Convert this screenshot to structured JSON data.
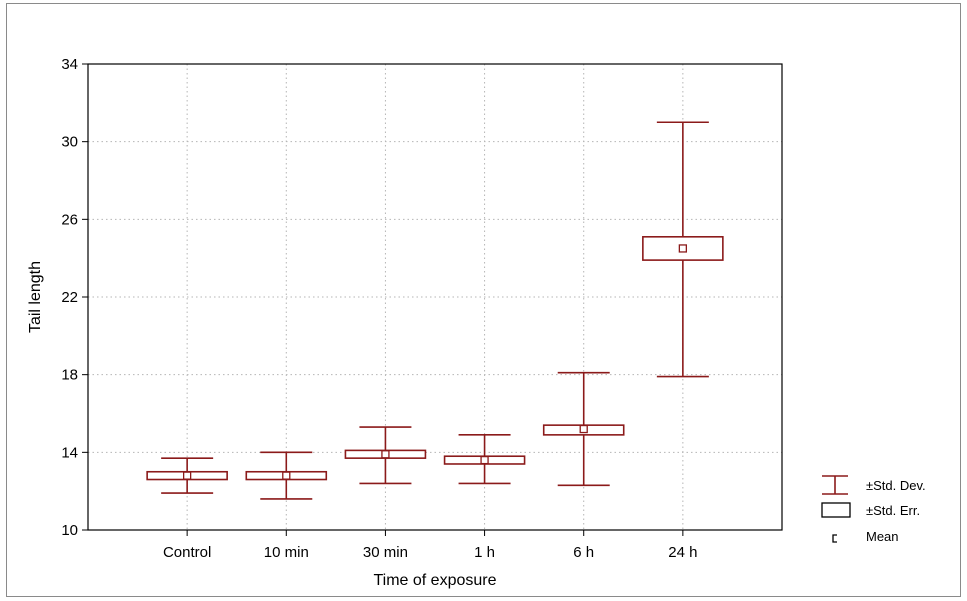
{
  "chart_data": {
    "type": "box",
    "title": "",
    "xlabel": "Time of exposure",
    "ylabel": "Tail length",
    "ylim": [
      10,
      34
    ],
    "yticks": [
      10,
      14,
      18,
      22,
      26,
      30,
      34
    ],
    "grid": true,
    "legend_position": "bottom-right",
    "color": "#8b1a1a",
    "categories": [
      "Control",
      "10 min",
      "30 min",
      "1 h",
      "6 h",
      "24 h"
    ],
    "series": [
      {
        "category": "Control",
        "mean": 12.8,
        "se_low": 12.6,
        "se_high": 13.0,
        "sd_low": 11.9,
        "sd_high": 13.7
      },
      {
        "category": "10 min",
        "mean": 12.8,
        "se_low": 12.6,
        "se_high": 13.0,
        "sd_low": 11.6,
        "sd_high": 14.0
      },
      {
        "category": "30 min",
        "mean": 13.9,
        "se_low": 13.7,
        "se_high": 14.1,
        "sd_low": 12.4,
        "sd_high": 15.3
      },
      {
        "category": "1 h",
        "mean": 13.6,
        "se_low": 13.4,
        "se_high": 13.8,
        "sd_low": 12.4,
        "sd_high": 14.9
      },
      {
        "category": "6 h",
        "mean": 15.2,
        "se_low": 14.9,
        "se_high": 15.4,
        "sd_low": 12.3,
        "sd_high": 18.1
      },
      {
        "category": "24 h",
        "mean": 24.5,
        "se_low": 23.9,
        "se_high": 25.1,
        "sd_low": 17.9,
        "sd_high": 31.0
      }
    ],
    "legend": {
      "sd": "±Std. Dev.",
      "se": "±Std. Err.",
      "mean": "Mean"
    }
  }
}
